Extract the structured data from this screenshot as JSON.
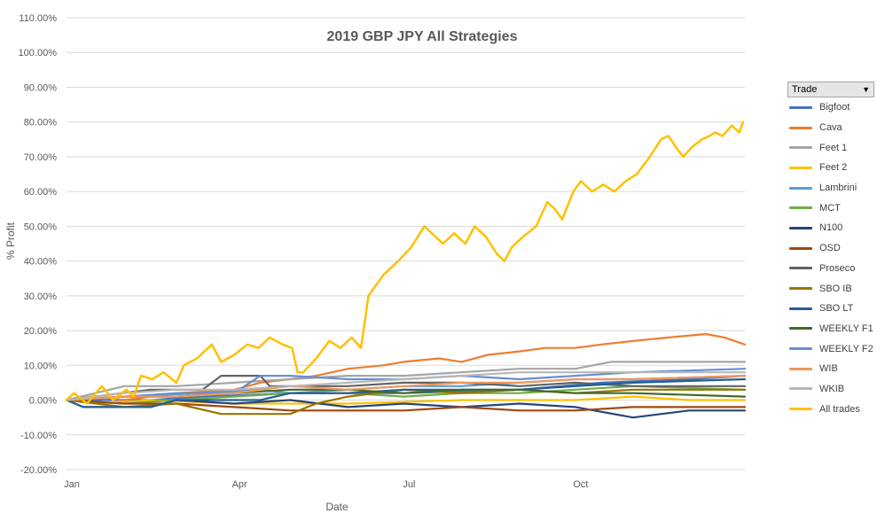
{
  "chart_data": {
    "type": "line",
    "title": "2019 GBP JPY All Strategies",
    "xlabel": "Date",
    "ylabel": "% Profit",
    "ylim": [
      -20,
      110
    ],
    "yticks": [
      "-20.00%",
      "-10.00%",
      "0.00%",
      "10.00%",
      "20.00%",
      "30.00%",
      "40.00%",
      "50.00%",
      "60.00%",
      "70.00%",
      "80.00%",
      "90.00%",
      "100.00%",
      "110.00%"
    ],
    "xticks": [
      "Jan",
      "Apr",
      "Jul",
      "Oct"
    ],
    "grid": true,
    "legend_position": "right",
    "legend_header": "Trade",
    "series": [
      {
        "name": "Bigfoot",
        "color": "#4472c4",
        "points": [
          [
            "2019-01-01",
            0
          ],
          [
            "2019-02-15",
            0
          ],
          [
            "2019-03-15",
            1
          ],
          [
            "2019-05-01",
            2
          ],
          [
            "2019-07-01",
            2
          ],
          [
            "2019-09-01",
            3
          ],
          [
            "2019-10-15",
            5
          ],
          [
            "2019-12-01",
            6
          ],
          [
            "2019-12-31",
            7
          ]
        ]
      },
      {
        "name": "Cava",
        "color": "#ed7d31",
        "points": [
          [
            "2019-01-01",
            0
          ],
          [
            "2019-01-15",
            1
          ],
          [
            "2019-02-01",
            0
          ],
          [
            "2019-03-01",
            2
          ],
          [
            "2019-04-01",
            3
          ],
          [
            "2019-04-15",
            5
          ],
          [
            "2019-05-01",
            6
          ],
          [
            "2019-05-15",
            7
          ],
          [
            "2019-06-01",
            9
          ],
          [
            "2019-06-20",
            10
          ],
          [
            "2019-07-01",
            11
          ],
          [
            "2019-07-20",
            12
          ],
          [
            "2019-08-01",
            11
          ],
          [
            "2019-08-15",
            13
          ],
          [
            "2019-09-01",
            14
          ],
          [
            "2019-09-15",
            15
          ],
          [
            "2019-10-01",
            15
          ],
          [
            "2019-10-15",
            16
          ],
          [
            "2019-11-01",
            17
          ],
          [
            "2019-11-20",
            18
          ],
          [
            "2019-12-10",
            19
          ],
          [
            "2019-12-20",
            18
          ],
          [
            "2019-12-31",
            16
          ]
        ]
      },
      {
        "name": "Feet 1",
        "color": "#a5a5a5",
        "points": [
          [
            "2019-01-01",
            0
          ],
          [
            "2019-02-01",
            4
          ],
          [
            "2019-03-01",
            4
          ],
          [
            "2019-04-01",
            5
          ],
          [
            "2019-05-01",
            6
          ],
          [
            "2019-06-01",
            7
          ],
          [
            "2019-07-01",
            7
          ],
          [
            "2019-08-01",
            8
          ],
          [
            "2019-09-01",
            9
          ],
          [
            "2019-10-01",
            9
          ],
          [
            "2019-10-20",
            11
          ],
          [
            "2019-12-31",
            11
          ]
        ]
      },
      {
        "name": "Feet 2",
        "color": "#ffc000",
        "points": [
          [
            "2019-01-01",
            0
          ],
          [
            "2019-01-20",
            -1
          ],
          [
            "2019-02-15",
            0
          ],
          [
            "2019-04-01",
            -1
          ],
          [
            "2019-06-01",
            -1
          ],
          [
            "2019-08-01",
            0
          ],
          [
            "2019-09-01",
            0
          ],
          [
            "2019-10-01",
            0
          ],
          [
            "2019-11-01",
            1
          ],
          [
            "2019-12-01",
            0
          ],
          [
            "2019-12-31",
            0
          ]
        ]
      },
      {
        "name": "Lambrini",
        "color": "#5b9bd5",
        "points": [
          [
            "2019-01-01",
            0
          ],
          [
            "2019-02-01",
            1
          ],
          [
            "2019-03-15",
            2
          ],
          [
            "2019-04-15",
            3
          ],
          [
            "2019-05-01",
            2
          ],
          [
            "2019-06-01",
            3
          ],
          [
            "2019-07-01",
            4
          ],
          [
            "2019-08-01",
            4
          ],
          [
            "2019-09-01",
            5
          ],
          [
            "2019-10-01",
            6
          ],
          [
            "2019-11-01",
            6
          ],
          [
            "2019-12-31",
            7
          ]
        ]
      },
      {
        "name": "MCT",
        "color": "#70ad47",
        "points": [
          [
            "2019-01-01",
            0
          ],
          [
            "2019-02-01",
            -1
          ],
          [
            "2019-03-01",
            0
          ],
          [
            "2019-04-01",
            1
          ],
          [
            "2019-05-01",
            2
          ],
          [
            "2019-06-01",
            2
          ],
          [
            "2019-07-01",
            1
          ],
          [
            "2019-08-01",
            2
          ],
          [
            "2019-09-01",
            2
          ],
          [
            "2019-10-01",
            3
          ],
          [
            "2019-11-01",
            4
          ],
          [
            "2019-12-31",
            3
          ]
        ]
      },
      {
        "name": "N100",
        "color": "#264478",
        "points": [
          [
            "2019-01-01",
            0
          ],
          [
            "2019-01-10",
            -2
          ],
          [
            "2019-02-15",
            -2
          ],
          [
            "2019-03-01",
            0
          ],
          [
            "2019-04-01",
            -1
          ],
          [
            "2019-05-01",
            0
          ],
          [
            "2019-06-01",
            -2
          ],
          [
            "2019-07-01",
            -1
          ],
          [
            "2019-08-01",
            -2
          ],
          [
            "2019-09-01",
            -1
          ],
          [
            "2019-10-01",
            -2
          ],
          [
            "2019-11-01",
            -5
          ],
          [
            "2019-12-01",
            -3
          ],
          [
            "2019-12-31",
            -3
          ]
        ]
      },
      {
        "name": "OSD",
        "color": "#9e480e",
        "points": [
          [
            "2019-01-01",
            0
          ],
          [
            "2019-02-01",
            -1
          ],
          [
            "2019-03-01",
            -1
          ],
          [
            "2019-04-01",
            -2
          ],
          [
            "2019-05-01",
            -3
          ],
          [
            "2019-06-01",
            -3
          ],
          [
            "2019-07-01",
            -3
          ],
          [
            "2019-08-01",
            -2
          ],
          [
            "2019-09-01",
            -3
          ],
          [
            "2019-10-01",
            -3
          ],
          [
            "2019-11-01",
            -2
          ],
          [
            "2019-12-31",
            -2
          ]
        ]
      },
      {
        "name": "Proseco",
        "color": "#636363",
        "points": [
          [
            "2019-01-01",
            0
          ],
          [
            "2019-02-15",
            3
          ],
          [
            "2019-03-15",
            3
          ],
          [
            "2019-03-25",
            7
          ],
          [
            "2019-04-15",
            7
          ],
          [
            "2019-04-20",
            4
          ],
          [
            "2019-06-01",
            4
          ],
          [
            "2019-07-01",
            5
          ],
          [
            "2019-08-01",
            5
          ],
          [
            "2019-09-01",
            4
          ],
          [
            "2019-10-01",
            5
          ],
          [
            "2019-11-01",
            4
          ],
          [
            "2019-12-31",
            4
          ]
        ]
      },
      {
        "name": "SBO IB",
        "color": "#997300",
        "points": [
          [
            "2019-01-01",
            0
          ],
          [
            "2019-02-01",
            -2
          ],
          [
            "2019-03-01",
            -1
          ],
          [
            "2019-03-25",
            -4
          ],
          [
            "2019-05-01",
            -4
          ],
          [
            "2019-05-15",
            -1
          ],
          [
            "2019-06-01",
            1
          ],
          [
            "2019-07-01",
            3
          ],
          [
            "2019-08-01",
            2
          ],
          [
            "2019-09-01",
            3
          ],
          [
            "2019-10-01",
            2
          ],
          [
            "2019-11-01",
            3
          ],
          [
            "2019-12-31",
            3
          ]
        ]
      },
      {
        "name": "SBO LT",
        "color": "#255e91",
        "points": [
          [
            "2019-01-01",
            0
          ],
          [
            "2019-01-10",
            -2
          ],
          [
            "2019-02-15",
            -2
          ],
          [
            "2019-03-01",
            0
          ],
          [
            "2019-04-15",
            0
          ],
          [
            "2019-05-01",
            2
          ],
          [
            "2019-06-01",
            2
          ],
          [
            "2019-07-01",
            3
          ],
          [
            "2019-08-01",
            3
          ],
          [
            "2019-09-01",
            3
          ],
          [
            "2019-10-01",
            4
          ],
          [
            "2019-11-01",
            5
          ],
          [
            "2019-12-31",
            6
          ]
        ]
      },
      {
        "name": "WEEKLY F1",
        "color": "#43682b",
        "points": [
          [
            "2019-01-01",
            0
          ],
          [
            "2019-02-01",
            1
          ],
          [
            "2019-03-01",
            1
          ],
          [
            "2019-04-01",
            2
          ],
          [
            "2019-05-01",
            3
          ],
          [
            "2019-06-01",
            3
          ],
          [
            "2019-07-01",
            2
          ],
          [
            "2019-08-01",
            3
          ],
          [
            "2019-09-01",
            3
          ],
          [
            "2019-10-01",
            2
          ],
          [
            "2019-11-01",
            2
          ],
          [
            "2019-12-31",
            1
          ]
        ]
      },
      {
        "name": "WEEKLY F2",
        "color": "#698ed0",
        "points": [
          [
            "2019-01-01",
            0
          ],
          [
            "2019-02-01",
            1
          ],
          [
            "2019-03-01",
            2
          ],
          [
            "2019-04-01",
            2
          ],
          [
            "2019-04-15",
            7
          ],
          [
            "2019-05-01",
            7
          ],
          [
            "2019-06-01",
            6
          ],
          [
            "2019-07-01",
            6
          ],
          [
            "2019-08-01",
            7
          ],
          [
            "2019-09-01",
            6
          ],
          [
            "2019-10-01",
            7
          ],
          [
            "2019-11-01",
            8
          ],
          [
            "2019-12-31",
            9
          ]
        ]
      },
      {
        "name": "WIB",
        "color": "#f1975a",
        "points": [
          [
            "2019-01-01",
            0
          ],
          [
            "2019-02-01",
            1
          ],
          [
            "2019-03-01",
            1
          ],
          [
            "2019-04-01",
            2
          ],
          [
            "2019-05-01",
            4
          ],
          [
            "2019-06-01",
            3
          ],
          [
            "2019-07-01",
            4
          ],
          [
            "2019-08-01",
            5
          ],
          [
            "2019-09-01",
            5
          ],
          [
            "2019-10-01",
            6
          ],
          [
            "2019-11-01",
            6
          ],
          [
            "2019-12-31",
            7
          ]
        ]
      },
      {
        "name": "WKIB",
        "color": "#b7b7b7",
        "points": [
          [
            "2019-01-01",
            0
          ],
          [
            "2019-02-01",
            2
          ],
          [
            "2019-03-01",
            3
          ],
          [
            "2019-04-01",
            3
          ],
          [
            "2019-05-01",
            4
          ],
          [
            "2019-06-01",
            5
          ],
          [
            "2019-07-01",
            6
          ],
          [
            "2019-08-01",
            7
          ],
          [
            "2019-09-01",
            8
          ],
          [
            "2019-10-01",
            8
          ],
          [
            "2019-11-01",
            8
          ],
          [
            "2019-12-31",
            8
          ]
        ]
      },
      {
        "name": "All trades",
        "color": "#ffc000",
        "points": [
          [
            "2019-01-01",
            0
          ],
          [
            "2019-01-05",
            2
          ],
          [
            "2019-01-12",
            -1
          ],
          [
            "2019-01-20",
            4
          ],
          [
            "2019-01-26",
            0
          ],
          [
            "2019-02-02",
            3
          ],
          [
            "2019-02-06",
            1
          ],
          [
            "2019-02-10",
            7
          ],
          [
            "2019-02-16",
            6
          ],
          [
            "2019-02-22",
            8
          ],
          [
            "2019-03-01",
            5
          ],
          [
            "2019-03-05",
            10
          ],
          [
            "2019-03-12",
            12
          ],
          [
            "2019-03-20",
            16
          ],
          [
            "2019-03-25",
            11
          ],
          [
            "2019-04-01",
            13
          ],
          [
            "2019-04-08",
            16
          ],
          [
            "2019-04-14",
            15
          ],
          [
            "2019-04-20",
            18
          ],
          [
            "2019-04-27",
            16
          ],
          [
            "2019-05-02",
            15
          ],
          [
            "2019-05-05",
            8
          ],
          [
            "2019-05-08",
            8
          ],
          [
            "2019-05-15",
            12
          ],
          [
            "2019-05-22",
            17
          ],
          [
            "2019-05-28",
            15
          ],
          [
            "2019-06-03",
            18
          ],
          [
            "2019-06-08",
            15
          ],
          [
            "2019-06-12",
            30
          ],
          [
            "2019-06-20",
            36
          ],
          [
            "2019-06-28",
            40
          ],
          [
            "2019-07-05",
            44
          ],
          [
            "2019-07-12",
            50
          ],
          [
            "2019-07-18",
            47
          ],
          [
            "2019-07-22",
            45
          ],
          [
            "2019-07-28",
            48
          ],
          [
            "2019-08-03",
            45
          ],
          [
            "2019-08-08",
            50
          ],
          [
            "2019-08-14",
            47
          ],
          [
            "2019-08-20",
            42
          ],
          [
            "2019-08-24",
            40
          ],
          [
            "2019-08-28",
            44
          ],
          [
            "2019-09-03",
            47
          ],
          [
            "2019-09-10",
            50
          ],
          [
            "2019-09-16",
            57
          ],
          [
            "2019-09-20",
            55
          ],
          [
            "2019-09-24",
            52
          ],
          [
            "2019-09-30",
            60
          ],
          [
            "2019-10-04",
            63
          ],
          [
            "2019-10-10",
            60
          ],
          [
            "2019-10-16",
            62
          ],
          [
            "2019-10-22",
            60
          ],
          [
            "2019-10-28",
            63
          ],
          [
            "2019-11-03",
            65
          ],
          [
            "2019-11-10",
            70
          ],
          [
            "2019-11-16",
            75
          ],
          [
            "2019-11-20",
            76
          ],
          [
            "2019-11-25",
            72
          ],
          [
            "2019-11-28",
            70
          ],
          [
            "2019-12-03",
            73
          ],
          [
            "2019-12-08",
            75
          ],
          [
            "2019-12-12",
            76
          ],
          [
            "2019-12-15",
            77
          ],
          [
            "2019-12-19",
            76
          ],
          [
            "2019-12-24",
            79
          ],
          [
            "2019-12-28",
            77
          ],
          [
            "2019-12-30",
            80
          ]
        ]
      }
    ]
  }
}
